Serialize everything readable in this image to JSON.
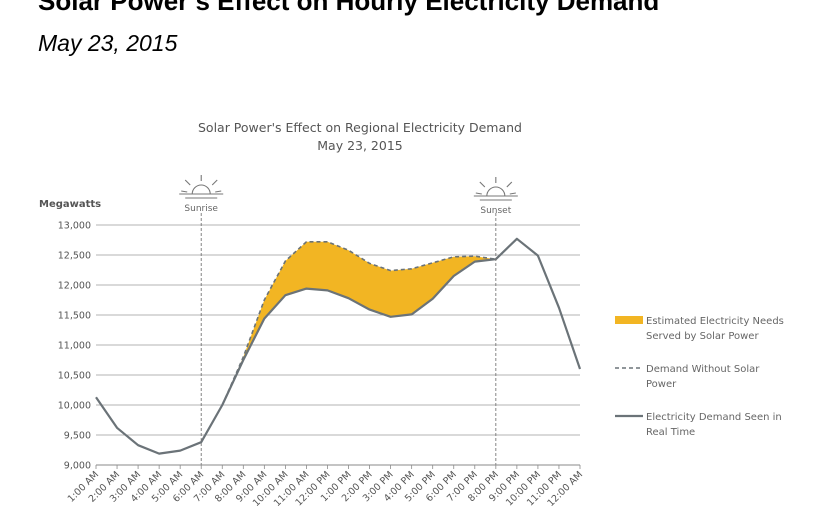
{
  "page": {
    "title": "Solar Power’s Effect on Hourly Electricity Demand",
    "subtitle": "May 23, 2015"
  },
  "chart_data": {
    "type": "line",
    "title": "Solar Power's Effect on Regional Electricity Demand",
    "subtitle": "May 23, 2015",
    "ylabel": "Megawatts",
    "xlabel": "",
    "ylim": [
      9000,
      13000
    ],
    "yticks": [
      9000,
      9500,
      10000,
      10500,
      11000,
      11500,
      12000,
      12500,
      13000
    ],
    "ytick_labels": [
      "9,000",
      "9,500",
      "10,000",
      "10,500",
      "11,000",
      "11,500",
      "12,000",
      "12,500",
      "13,000"
    ],
    "categories": [
      "1:00 AM",
      "2:00 AM",
      "3:00 AM",
      "4:00 AM",
      "5:00 AM",
      "6:00 AM",
      "7:00 AM",
      "8:00 AM",
      "9:00 AM",
      "10:00 AM",
      "11:00 AM",
      "12:00 PM",
      "1:00 PM",
      "2:00 PM",
      "3:00 PM",
      "4:00 PM",
      "5:00 PM",
      "6:00 PM",
      "7:00 PM",
      "8:00 PM",
      "9:00 PM",
      "10:00 PM",
      "11:00 PM",
      "12:00 AM"
    ],
    "series": [
      {
        "name": "Electricity Demand Seen in Real Time",
        "style": "solid",
        "color": "#6b7378",
        "values": [
          10130,
          9620,
          9330,
          9190,
          9240,
          9380,
          10000,
          10750,
          11440,
          11830,
          11940,
          11910,
          11780,
          11590,
          11470,
          11510,
          11770,
          12150,
          12390,
          12430,
          12770,
          12490,
          11620,
          10600
        ]
      },
      {
        "name": "Demand Without Solar Power",
        "style": "dashed",
        "color": "#6b7378",
        "values": [
          null,
          null,
          null,
          null,
          null,
          null,
          10000,
          10800,
          11750,
          12400,
          12720,
          12720,
          12580,
          12360,
          12240,
          12270,
          12370,
          12470,
          12480,
          12430,
          null,
          null,
          null,
          null
        ]
      }
    ],
    "fill": {
      "name": "Estimated Electricity Needs Served by Solar Power",
      "color": "#f2b523",
      "between": [
        "Demand Without Solar Power",
        "Electricity Demand Seen in Real Time"
      ]
    },
    "markers": [
      {
        "label": "Sunrise",
        "category": "6:00 AM",
        "icon": "sunrise-icon"
      },
      {
        "label": "Sunset",
        "category": "8:00 PM",
        "icon": "sunset-icon"
      }
    ],
    "grid": "horizontal",
    "legend_position": "right",
    "legend": [
      {
        "key": "fill",
        "lines": [
          "Estimated Electricity Needs",
          "Served by Solar Power"
        ]
      },
      {
        "key": "dashed",
        "lines": [
          "Demand Without Solar",
          "Power"
        ]
      },
      {
        "key": "solid",
        "lines": [
          "Electricity Demand Seen in",
          "Real Time"
        ]
      }
    ]
  }
}
